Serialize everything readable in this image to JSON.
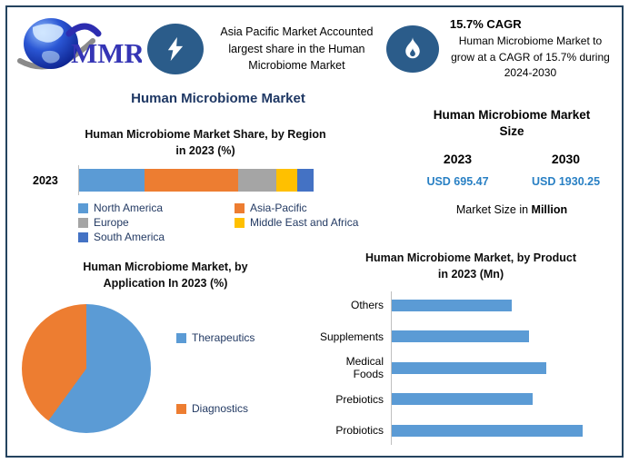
{
  "header": {
    "logo_text": "MMR",
    "highlight": "Asia Pacific Market Accounted largest share in the Human Microbiome Market",
    "cagr_title": "15.7% CAGR",
    "cagr_text": "Human Microbiome Market to grow at a CAGR of 15.7% during 2024-2030"
  },
  "main_title": "Human Microbiome Market",
  "colors": {
    "title_navy": "#1F3864",
    "frame_border": "#24435F",
    "icon_circle": "#2B5C8A",
    "value_blue": "#2980C4",
    "axis_gray": "#BFBFBF"
  },
  "chart_data": [
    {
      "id": "region_share",
      "type": "bar",
      "subtype": "stacked-horizontal",
      "title": "Human Microbiome Market Share, by Region in 2023 (%)",
      "title_lines": [
        "Human Microbiome Market Share, by Region",
        "in 2023 (%)"
      ],
      "categories": [
        "2023"
      ],
      "series": [
        {
          "name": "North America",
          "value": 28,
          "color": "#5B9BD5"
        },
        {
          "name": "Asia-Pacific",
          "value": 40,
          "color": "#ED7D31"
        },
        {
          "name": "Europe",
          "value": 16,
          "color": "#A5A5A5"
        },
        {
          "name": "Middle East and Africa",
          "value": 9,
          "color": "#FFC000"
        },
        {
          "name": "South America",
          "value": 7,
          "color": "#4472C4"
        }
      ],
      "xlim": [
        0,
        100
      ],
      "legend_position": "bottom",
      "note": "segment percentages estimated from bar proportions; no data labels shown"
    },
    {
      "id": "application_split",
      "type": "pie",
      "title": "Human Microbiome Market, by Application In 2023 (%)",
      "title_lines": [
        "Human Microbiome Market, by",
        "Application In 2023 (%)"
      ],
      "slices": [
        {
          "label": "Therapeutics",
          "value": 60,
          "color": "#5B9BD5"
        },
        {
          "label": "Diagnostics",
          "value": 40,
          "color": "#ED7D31"
        }
      ],
      "legend_position": "right",
      "note": "slice values estimated from pie angles; no data labels shown"
    },
    {
      "id": "product_market",
      "type": "bar",
      "subtype": "horizontal",
      "title": "Human Microbiome Market, by Product in 2023 (Mn)",
      "title_lines": [
        "Human Microbiome Market, by Product",
        "in 2023 (Mn)"
      ],
      "categories": [
        "Others",
        "Supplements",
        "Medical Foods",
        "Prebiotics",
        "Probiotics"
      ],
      "values": [
        63,
        72,
        81,
        74,
        100
      ],
      "bar_color": "#5B9BD5",
      "value_scale": "relative, longest bar = 100; no axis labels shown",
      "legend_position": "none"
    },
    {
      "id": "market_size",
      "type": "table",
      "title": "Human Microbiome Market Size",
      "title_lines": [
        "Human Microbiome Market",
        "Size"
      ],
      "columns": [
        "2023",
        "2030"
      ],
      "values": [
        "USD 695.47",
        "USD 1930.25"
      ],
      "footnote_prefix": "Market Size in",
      "footnote_bold": "Million",
      "value_color": "#2980C4"
    }
  ]
}
